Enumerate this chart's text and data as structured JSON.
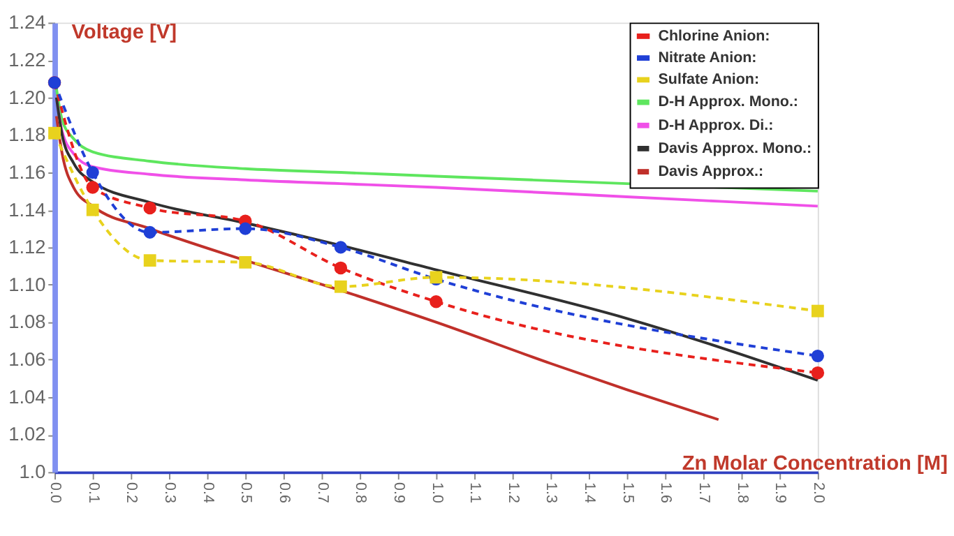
{
  "chart_data": {
    "type": "line",
    "xlabel": "Zn Molar Concentration [M]",
    "ylabel": "Voltage [V]",
    "xlim": [
      0,
      2.0
    ],
    "ylim": [
      1.0,
      1.24
    ],
    "xticks": [
      {
        "value": 0,
        "label": "0.0"
      },
      0.1,
      0.2,
      0.3,
      0.4,
      0.5,
      0.6,
      0.7,
      0.8,
      0.9,
      {
        "value": 1,
        "label": "1.0"
      },
      1.1,
      1.2,
      1.3,
      1.4,
      1.5,
      1.6,
      1.7,
      1.8,
      1.9,
      {
        "value": 2,
        "label": "2.0"
      }
    ],
    "yticks": [
      {
        "value": 1.0,
        "label": "1.0"
      },
      1.02,
      1.04,
      1.06,
      1.08,
      {
        "value": 1.1,
        "label": "1.10"
      },
      1.12,
      1.14,
      1.16,
      1.18,
      {
        "value": 1.2,
        "label": "1.20"
      },
      1.22,
      1.24
    ],
    "grid": false,
    "legend": "top right",
    "series": [
      {
        "name": "Chlorine Anion:",
        "color": "#e8201c",
        "marker": "circle",
        "line_style": "dashed",
        "x": [
          0,
          0.1,
          0.25,
          0.5,
          0.75,
          1.0,
          2.0
        ],
        "values": [
          1.208,
          1.152,
          1.141,
          1.134,
          1.109,
          1.091,
          1.053
        ]
      },
      {
        "name": "Nitrate Anion:",
        "color": "#1f3fd6",
        "marker": "circle",
        "line_style": "dashed",
        "x": [
          0,
          0.1,
          0.25,
          0.5,
          0.75,
          1.0,
          2.0
        ],
        "values": [
          1.208,
          1.16,
          1.128,
          1.13,
          1.12,
          1.103,
          1.062
        ]
      },
      {
        "name": "Sulfate Anion:",
        "color": "#e8d21d",
        "marker": "square",
        "line_style": "dashed",
        "x": [
          0,
          0.1,
          0.25,
          0.5,
          0.75,
          1.0,
          2.0
        ],
        "values": [
          1.181,
          1.14,
          1.113,
          1.112,
          1.099,
          1.104,
          1.086
        ]
      },
      {
        "name": "D-H Approx. Mono.:",
        "color": "#5ee65e",
        "marker": "none",
        "line_style": "solid",
        "x": [
          0.005,
          0.02,
          0.05,
          0.1,
          0.25,
          0.5,
          0.75,
          1.0,
          1.5,
          2.0
        ],
        "values": [
          1.205,
          1.188,
          1.178,
          1.171,
          1.166,
          1.162,
          1.16,
          1.158,
          1.154,
          1.15
        ]
      },
      {
        "name": "D-H Approx. Di.:",
        "color": "#f050e8",
        "marker": "none",
        "line_style": "solid",
        "x": [
          0.005,
          0.02,
          0.05,
          0.1,
          0.25,
          0.5,
          0.75,
          1.0,
          1.5,
          2.0
        ],
        "values": [
          1.2,
          1.182,
          1.17,
          1.163,
          1.159,
          1.156,
          1.154,
          1.152,
          1.147,
          1.142
        ]
      },
      {
        "name": "Davis Approx. Mono.:",
        "color": "#303030",
        "marker": "none",
        "line_style": "solid",
        "x": [
          0.005,
          0.02,
          0.05,
          0.1,
          0.25,
          0.5,
          0.75,
          1.0,
          1.5,
          2.0
        ],
        "values": [
          1.2,
          1.18,
          1.165,
          1.155,
          1.144,
          1.133,
          1.121,
          1.108,
          1.082,
          1.049
        ]
      },
      {
        "name": "Davis Approx.:",
        "color": "#c0302a",
        "marker": "none",
        "line_style": "solid",
        "x": [
          0.005,
          0.02,
          0.05,
          0.1,
          0.25,
          0.5,
          0.75,
          1.0,
          1.3,
          1.5,
          1.74
        ],
        "values": [
          1.19,
          1.17,
          1.152,
          1.142,
          1.13,
          1.113,
          1.097,
          1.08,
          1.058,
          1.044,
          1.028
        ]
      }
    ]
  }
}
